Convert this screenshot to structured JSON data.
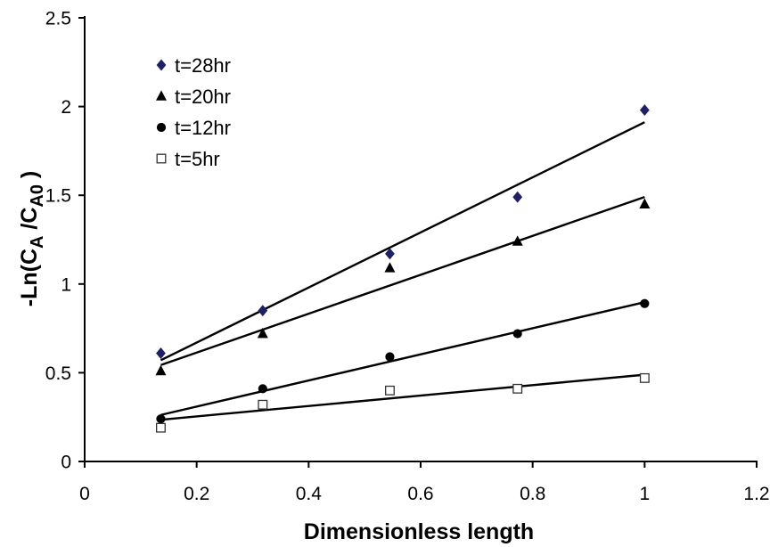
{
  "chart_data": {
    "type": "scatter",
    "trendline": {
      "type": "linear",
      "color": "#000000"
    },
    "xlabel": "Dimensionless length",
    "ylabel": [
      {
        "text": "-Ln(C",
        "sub": false
      },
      {
        "text": "A",
        "sub": true
      },
      {
        "text": " /C",
        "sub": false
      },
      {
        "text": "A0",
        "sub": true
      },
      {
        "text": " )",
        "sub": false
      }
    ],
    "xlim": [
      0,
      1.2
    ],
    "ylim": [
      0,
      2.5
    ],
    "xticks": [
      "0",
      "0.2",
      "0.4",
      "0.6",
      "0.8",
      "1",
      "1.2"
    ],
    "yticks": [
      "0",
      "0.5",
      "1",
      "1.5",
      "2",
      "2.5"
    ],
    "grid": false,
    "legend": {
      "position": "top-left"
    },
    "series": [
      {
        "name": "t=28hr",
        "marker": "diamond",
        "color": "#1f1f66",
        "fill": "#1f1f66",
        "x": [
          0.136,
          0.318,
          0.545,
          0.773,
          1
        ],
        "y": [
          0.61,
          0.85,
          1.17,
          1.49,
          1.98
        ]
      },
      {
        "name": "t=20hr",
        "marker": "triangle",
        "color": "#000000",
        "fill": "#000000",
        "x": [
          0.136,
          0.318,
          0.545,
          0.773,
          1
        ],
        "y": [
          0.51,
          0.72,
          1.09,
          1.24,
          1.45
        ]
      },
      {
        "name": "t=12hr",
        "marker": "circle",
        "color": "#000000",
        "fill": "#000000",
        "x": [
          0.136,
          0.318,
          0.545,
          0.773,
          1
        ],
        "y": [
          0.24,
          0.41,
          0.59,
          0.72,
          0.89
        ]
      },
      {
        "name": "t=5hr",
        "marker": "square",
        "color": "#333333",
        "fill": "#ffffff",
        "x": [
          0.136,
          0.318,
          0.545,
          0.773,
          1
        ],
        "y": [
          0.19,
          0.32,
          0.4,
          0.41,
          0.47
        ]
      }
    ]
  }
}
